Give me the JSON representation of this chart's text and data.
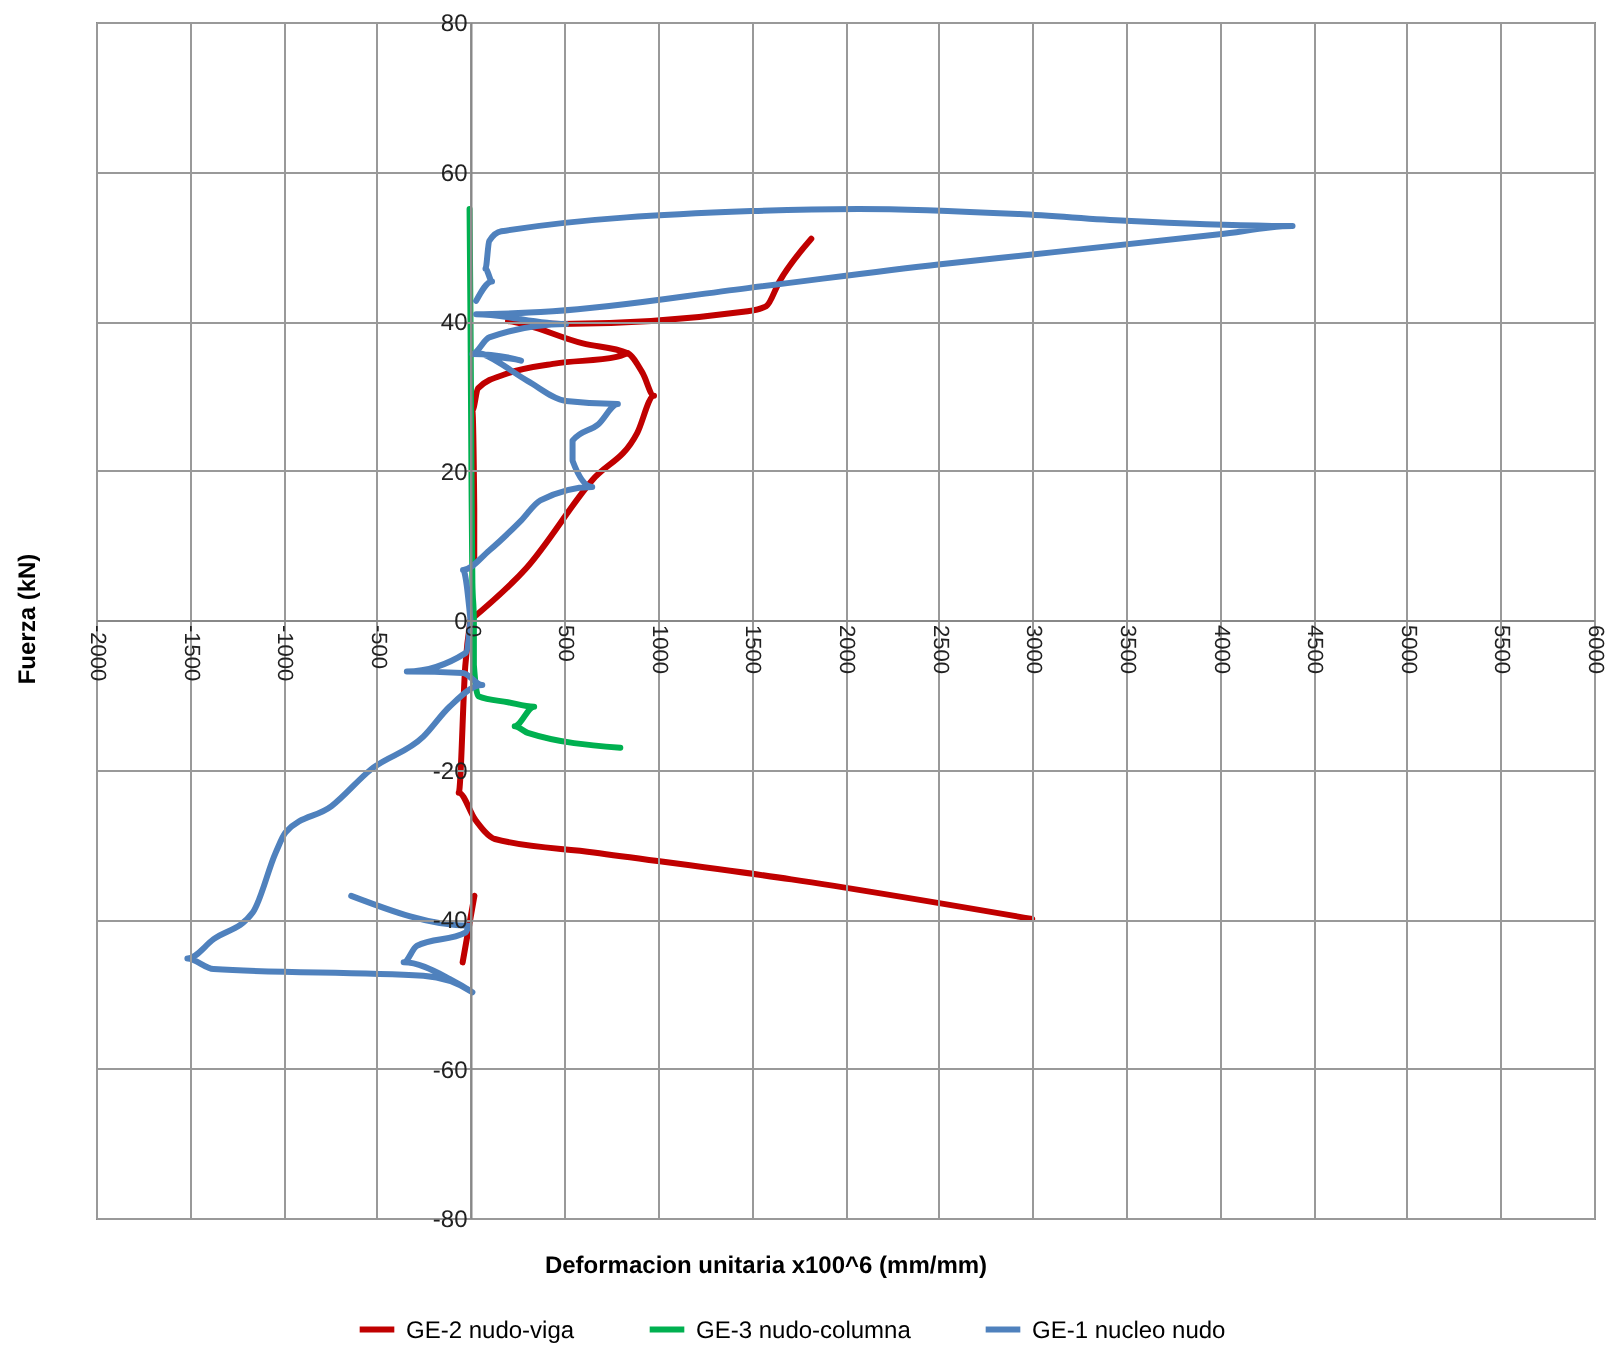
{
  "chart_data": {
    "type": "line",
    "xlabel": "Deformacion unitaria x100^6  (mm/mm)",
    "ylabel": "Fuerza  (kN)",
    "xlim": [
      -2000,
      6000
    ],
    "xticks": [
      -2000,
      -1500,
      -1000,
      -500,
      0,
      500,
      1000,
      1500,
      2000,
      2500,
      3000,
      3500,
      4000,
      4500,
      5000,
      5500,
      6000
    ],
    "ylim": [
      -80,
      80
    ],
    "yticks": [
      -80,
      -60,
      -40,
      -20,
      0,
      20,
      40,
      60,
      80
    ],
    "grid": true,
    "legend": "bottom",
    "marker": "none",
    "line_style": "solid",
    "series": [
      {
        "name": "GE-2 nudo-viga",
        "color": "#c00000",
        "x": [
          0,
          300,
          650,
          890,
          980,
          920,
          840,
          600,
          200,
          480,
          1480,
          1580,
          1650,
          1820,
          null,
          20,
          20,
          10,
          40,
          200,
          450,
          780,
          840,
          null,
          0,
          -28,
          -63,
          25,
          130,
          658,
          1714,
          3000,
          null,
          21,
          -42
        ],
        "values": [
          0,
          7,
          18.7,
          25,
          30,
          33,
          35.7,
          37,
          40,
          39.6,
          41.3,
          42,
          45.3,
          51,
          null,
          8,
          15,
          28,
          31,
          33,
          34.3,
          35.2,
          35.7,
          null,
          0,
          -6.2,
          -23.1,
          -26.7,
          -29.3,
          -31.1,
          -34.7,
          -40,
          null,
          -36.9,
          -45.8
        ]
      },
      {
        "name": "GE-3 nudo-columna",
        "color": "#00b050",
        "x": [
          -5,
          0,
          5,
          10,
          18,
          18,
          42,
          200,
          340,
          236,
          306,
          800
        ],
        "values": [
          55,
          40,
          20,
          5,
          0,
          -6,
          -10.2,
          -11,
          -11.6,
          -14.2,
          -15.1,
          -17.1
        ]
      },
      {
        "name": "GE-1 nucleo nudo",
        "color": "#4f81bd",
        "x": [
          0,
          -40,
          100,
          270,
          373,
          650,
          545,
          545,
          683,
          787,
          510,
          304,
          62,
          270,
          10,
          100,
          510,
          30,
          440,
          1480,
          2510,
          3000,
          4000,
          4390,
          3500,
          2930,
          2070,
          1500,
          165,
          100,
          80,
          115,
          30,
          null,
          0,
          -25,
          -340,
          -42,
          63,
          -112,
          -252,
          -532,
          -742,
          -987,
          -1040,
          -1162,
          -1372,
          -1512,
          -1372,
          -252,
          10,
          -112,
          -357,
          -287,
          -25,
          -7,
          -637
        ],
        "values": [
          0,
          6.7,
          9.3,
          13.3,
          16,
          17.8,
          21.3,
          24,
          26.2,
          28.9,
          29.3,
          32,
          35.6,
          34.7,
          35.6,
          37.8,
          39.6,
          40.9,
          41.3,
          44.4,
          47.6,
          48.9,
          51.6,
          52.7,
          53.4,
          54.3,
          55,
          54.7,
          52,
          50.7,
          47,
          45.3,
          42.7,
          null,
          0,
          -4.4,
          -6.9,
          -7.1,
          -8.7,
          -11.6,
          -15.6,
          -20,
          -24.9,
          -28.4,
          -31.1,
          -39.1,
          -42.7,
          -45.3,
          -46.7,
          -47.6,
          -49.8,
          -48,
          -45.8,
          -43.6,
          -41.8,
          -40.9,
          -36.9
        ]
      }
    ]
  }
}
